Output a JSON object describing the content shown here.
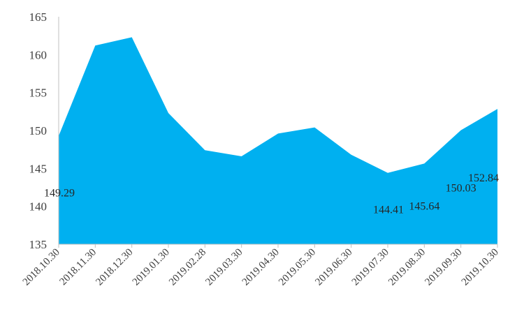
{
  "chart_data": {
    "type": "area",
    "x": [
      "2018.10.30",
      "2018.11.30",
      "2018.12.30",
      "2019.01.30",
      "2019.02.28",
      "2019.03.30",
      "2019.04.30",
      "2019.05.30",
      "2019.06.30",
      "2019.07.30",
      "2019.08.30",
      "2019.09.30",
      "2019.10.30"
    ],
    "series": [
      {
        "values": [
          149.29,
          161.2,
          162.3,
          152.3,
          147.4,
          146.6,
          149.6,
          150.4,
          146.8,
          144.41,
          145.64,
          150.03,
          152.84
        ],
        "color": "#00b0f0"
      }
    ],
    "data_labels": [
      {
        "index": 0,
        "text": "149.29"
      },
      {
        "index": 9,
        "text": "144.41"
      },
      {
        "index": 10,
        "text": "145.64"
      },
      {
        "index": 11,
        "text": "150.03"
      },
      {
        "index": 12,
        "text": "152.84"
      }
    ],
    "ylim": [
      135,
      165
    ],
    "yticks": [
      135,
      140,
      145,
      150,
      155,
      160,
      165
    ],
    "title": "",
    "xlabel": "",
    "ylabel": "",
    "grid": false,
    "legend": "none"
  }
}
